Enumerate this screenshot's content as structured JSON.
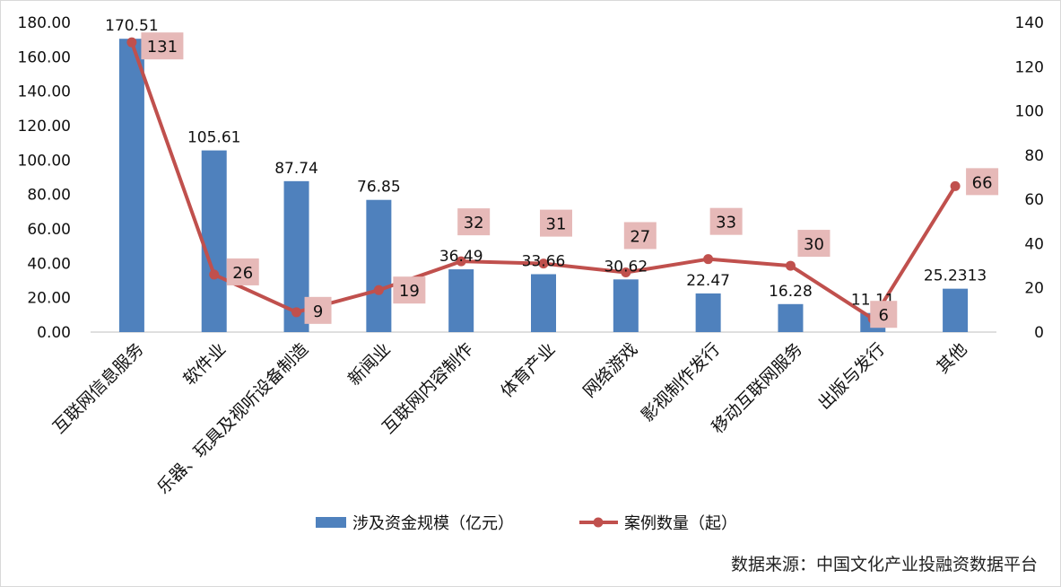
{
  "chart_data": {
    "type": "bar",
    "categories": [
      "互联网信息服务",
      "软件业",
      "乐器、玩具及视听设备制造",
      "新闻业",
      "互联网内容制作",
      "体育产业",
      "网络游戏",
      "影视制作发行",
      "移动互联网服务",
      "出版与发行",
      "其他"
    ],
    "series": [
      {
        "name": "涉及资金规模（亿元）",
        "type": "bar",
        "axis": "left",
        "color": "#4f81bd",
        "values": [
          170.51,
          105.61,
          87.74,
          76.85,
          36.49,
          33.66,
          30.62,
          22.47,
          16.28,
          11.11,
          25.2313
        ],
        "labels": [
          "170.51",
          "105.61",
          "87.74",
          "76.85",
          "36.49",
          "33.66",
          "30.62",
          "22.47",
          "16.28",
          "11.11",
          "25.2313"
        ]
      },
      {
        "name": "案例数量（起）",
        "type": "line",
        "axis": "right",
        "color": "#c0504d",
        "label_bg": "#e6b9b8",
        "values": [
          131,
          26,
          9,
          19,
          32,
          31,
          27,
          33,
          30,
          6,
          66
        ],
        "labels": [
          "131",
          "26",
          "9",
          "19",
          "32",
          "31",
          "27",
          "33",
          "30",
          "6",
          "66"
        ]
      }
    ],
    "y_left": {
      "ylim": [
        0,
        180
      ],
      "ticks": [
        0,
        20,
        40,
        60,
        80,
        100,
        120,
        140,
        160,
        180
      ],
      "tick_labels": [
        "0.00",
        "20.00",
        "40.00",
        "60.00",
        "80.00",
        "100.00",
        "120.00",
        "140.00",
        "160.00",
        "180.00"
      ]
    },
    "y_right": {
      "ylim": [
        0,
        140
      ],
      "ticks": [
        0,
        20,
        40,
        60,
        80,
        100,
        120,
        140
      ],
      "tick_labels": [
        "0",
        "20",
        "40",
        "60",
        "80",
        "100",
        "120",
        "140"
      ]
    },
    "grid": false,
    "legend_position": "bottom",
    "source": "数据来源：中国文化产业投融资数据平台"
  }
}
